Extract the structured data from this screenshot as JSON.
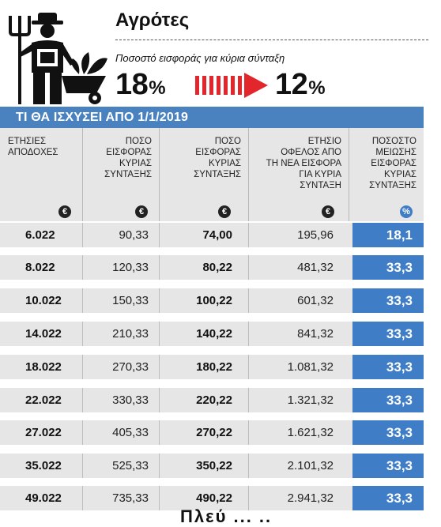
{
  "title": "Αγρότες",
  "subtitle": "Ποσοστό εισφοράς για κύρια σύνταξη",
  "rate_old": "18",
  "rate_new": "12",
  "percent_sign": "%",
  "banner": "ΤΙ ΘΑ ΙΣΧΥΣΕΙ ΑΠΟ 1/1/2019",
  "columns": [
    {
      "header": "ΕΤΗΣΙΕΣ\nΑΠΟΔΟΧΕΣ",
      "unit": "€"
    },
    {
      "header": "ΠΟΣΟ\nΕΙΣΦΟΡΑΣ\nΚΥΡΙΑΣ\nΣΥΝΤΑΞΗΣ",
      "unit": "€"
    },
    {
      "header": "ΠΟΣΟ\nΕΙΣΦΟΡΑΣ\nΚΥΡΙΑΣ\nΣΥΝΤΑΞΗΣ",
      "unit": "€"
    },
    {
      "header": "ΕΤΗΣΙΟ\nΟΦΕΛΟΣ ΑΠΟ\nΤΗ ΝΕΑ ΕΙΣΦΟΡΑ\nΓΙΑ ΚΥΡΙΑ\nΣΥΝΤΑΞΗ",
      "unit": "€"
    },
    {
      "header": "ΠΟΣΟΣΤΟ\nΜΕΙΩΣΗΣ\nΕΙΣΦΟΡΑΣ\nΚΥΡΙΑΣ\nΣΥΝΤΑΞΗΣ",
      "unit": "%"
    }
  ],
  "rows": [
    {
      "income": "6.022",
      "old": "90,33",
      "new": "74,00",
      "benefit": "195,96",
      "reduction": "18,1"
    },
    {
      "income": "8.022",
      "old": "120,33",
      "new": "80,22",
      "benefit": "481,32",
      "reduction": "33,3"
    },
    {
      "income": "10.022",
      "old": "150,33",
      "new": "100,22",
      "benefit": "601,32",
      "reduction": "33,3"
    },
    {
      "income": "14.022",
      "old": "210,33",
      "new": "140,22",
      "benefit": "841,32",
      "reduction": "33,3"
    },
    {
      "income": "18.022",
      "old": "270,33",
      "new": "180,22",
      "benefit": "1.081,32",
      "reduction": "33,3"
    },
    {
      "income": "22.022",
      "old": "330,33",
      "new": "220,22",
      "benefit": "1.321,32",
      "reduction": "33,3"
    },
    {
      "income": "27.022",
      "old": "405,33",
      "new": "270,22",
      "benefit": "1.621,32",
      "reduction": "33,3"
    },
    {
      "income": "35.022",
      "old": "525,33",
      "new": "350,22",
      "benefit": "2.101,32",
      "reduction": "33,3"
    },
    {
      "income": "49.022",
      "old": "735,33",
      "new": "490,22",
      "benefit": "2.941,32",
      "reduction": "33,3"
    }
  ],
  "bottom_text": "Πλεύ ... ..",
  "colors": {
    "accent": "#4a82c0",
    "pct_cell": "#3f7dc6",
    "arrow": "#e3262b",
    "row_bg": "#e6e6e6"
  },
  "icons": [
    "farmer-icon",
    "arrow-right-icon"
  ]
}
